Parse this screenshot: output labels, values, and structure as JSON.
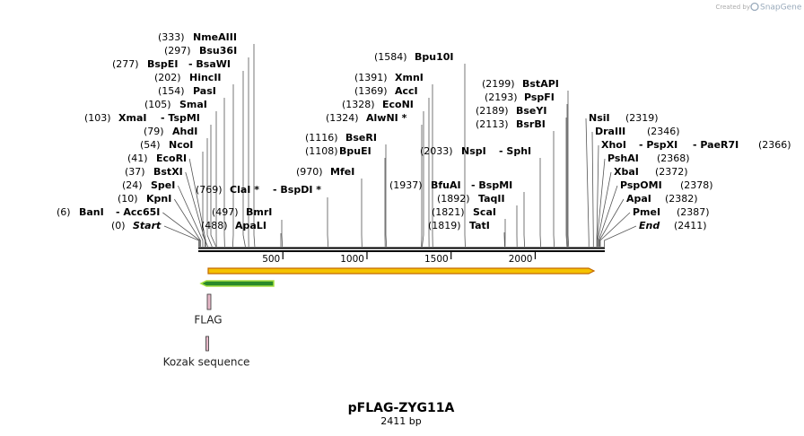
{
  "branding": {
    "created_by": "Created by",
    "product": "SnapGene"
  },
  "title": "pFLAG-ZYG11A",
  "subtitle": "2411 bp",
  "ruler": {
    "ticks": [
      500,
      1000,
      1500,
      2000
    ]
  },
  "sites": [
    {
      "position": "(333)",
      "names": [
        "NmeAIII"
      ]
    },
    {
      "position": "(297)",
      "names": [
        "Bsu36I"
      ]
    },
    {
      "position": "(277)",
      "names": [
        "BspEI",
        "- BsaWI"
      ]
    },
    {
      "position": "(202)",
      "names": [
        "HincII"
      ]
    },
    {
      "position": "(154)",
      "names": [
        "PasI"
      ]
    },
    {
      "position": "(105)",
      "names": [
        "SmaI"
      ]
    },
    {
      "position": "(103)",
      "names": [
        "XmaI",
        "- TspMI"
      ]
    },
    {
      "position": "(79)",
      "names": [
        "AhdI"
      ]
    },
    {
      "position": "(54)",
      "names": [
        "NcoI"
      ]
    },
    {
      "position": "(41)",
      "names": [
        "EcoRI"
      ]
    },
    {
      "position": "(37)",
      "names": [
        "BstXI"
      ]
    },
    {
      "position": "(24)",
      "names": [
        "SpeI"
      ]
    },
    {
      "position": "(10)",
      "names": [
        "KpnI"
      ]
    },
    {
      "position": "(6)",
      "names": [
        "BanI",
        "- Acc65I"
      ]
    },
    {
      "position": "(0)",
      "names": [
        "Start"
      ]
    },
    {
      "position": "(769)",
      "names": [
        "ClaI *",
        "- BspDI *"
      ]
    },
    {
      "position": "(497)",
      "names": [
        "BmrI"
      ]
    },
    {
      "position": "(488)",
      "names": [
        "ApaLI"
      ]
    },
    {
      "position": "(970)",
      "names": [
        "MfeI"
      ]
    },
    {
      "position": "(1116)",
      "names": [
        "BseRI"
      ]
    },
    {
      "position": "(1108)",
      "names": [
        "BpuEI"
      ]
    },
    {
      "position": "(1584)",
      "names": [
        "Bpu10I"
      ]
    },
    {
      "position": "(1391)",
      "names": [
        "XmnI"
      ]
    },
    {
      "position": "(1369)",
      "names": [
        "AccI"
      ]
    },
    {
      "position": "(1328)",
      "names": [
        "EcoNI"
      ]
    },
    {
      "position": "(1324)",
      "names": [
        "AlwNI *"
      ]
    },
    {
      "position": "(2033)",
      "names": [
        "NspI",
        "- SphI"
      ]
    },
    {
      "position": "(1937)",
      "names": [
        "BfuAI",
        "- BspMI"
      ]
    },
    {
      "position": "(1892)",
      "names": [
        "TaqII"
      ]
    },
    {
      "position": "(1821)",
      "names": [
        "ScaI"
      ]
    },
    {
      "position": "(1819)",
      "names": [
        "TatI"
      ]
    },
    {
      "position": "(2199)",
      "names": [
        "BstAPI"
      ]
    },
    {
      "position": "(2193)",
      "names": [
        "PspFI"
      ]
    },
    {
      "position": "(2189)",
      "names": [
        "BseYI"
      ]
    },
    {
      "position": "(2113)",
      "names": [
        "BsrBI"
      ]
    },
    {
      "position": "(2319)",
      "names": [
        "NsiI"
      ]
    },
    {
      "position": "(2346)",
      "names": [
        "DraIII"
      ]
    },
    {
      "position": "(2366)",
      "names": [
        "XhoI",
        "- PspXI",
        "- PaeR7I"
      ]
    },
    {
      "position": "(2368)",
      "names": [
        "PshAI"
      ]
    },
    {
      "position": "(2372)",
      "names": [
        "XbaI"
      ]
    },
    {
      "position": "(2378)",
      "names": [
        "PspOMI"
      ]
    },
    {
      "position": "(2382)",
      "names": [
        "ApaI"
      ]
    },
    {
      "position": "(2387)",
      "names": [
        "PmeI"
      ]
    },
    {
      "position": "(2411)",
      "names": [
        "End"
      ]
    }
  ],
  "features": [
    {
      "label": "FLAG"
    },
    {
      "label": "Kozak sequence"
    }
  ]
}
